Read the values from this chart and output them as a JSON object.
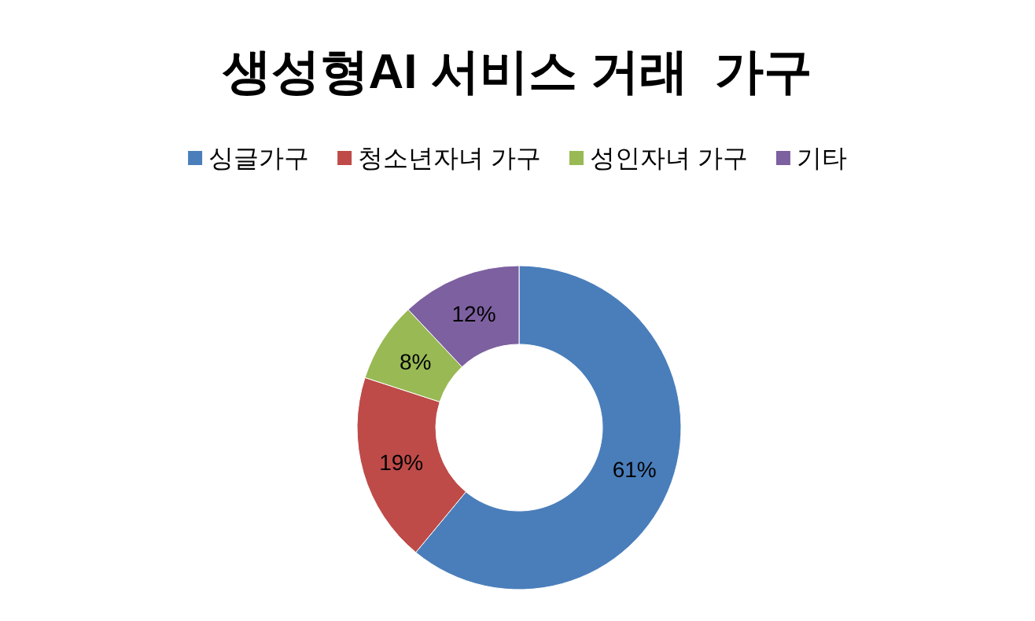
{
  "chart_data": {
    "type": "donut",
    "title": "생성형AI 서비스 거래  가구",
    "categories": [
      "싱글가구",
      "청소년자녀 가구",
      "성인자녀 가구",
      "기타"
    ],
    "values": [
      61,
      19,
      8,
      12
    ],
    "value_labels": [
      "61%",
      "19%",
      "8%",
      "12%"
    ],
    "colors": [
      "#4a7ebb",
      "#be4b48",
      "#98b954",
      "#7d60a0"
    ],
    "legend": "top"
  }
}
